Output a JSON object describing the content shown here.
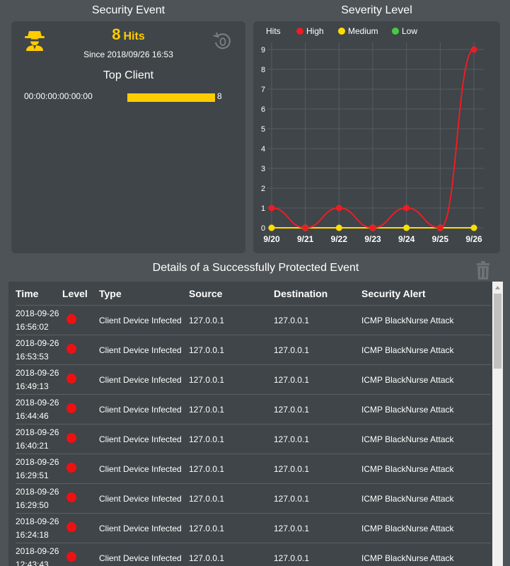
{
  "security_event": {
    "title": "Security Event",
    "hits_count": "8",
    "hits_unit": "Hits",
    "since": "Since 2018/09/26 16:53",
    "top_client_title": "Top Client",
    "top_client": {
      "mac": "00:00:00:00:00:00",
      "count": "8",
      "fraction": 1.0
    },
    "icons": {
      "spy": "spy-icon",
      "reset": "reset-counter-icon"
    }
  },
  "severity": {
    "title": "Severity Level"
  },
  "chart_data": {
    "type": "line",
    "title": "Severity Level",
    "legend_title": "Hits",
    "legend_position": "top-left",
    "categories": [
      "9/20",
      "9/21",
      "9/22",
      "9/23",
      "9/24",
      "9/25",
      "9/26"
    ],
    "ylim": [
      0,
      9
    ],
    "yticks": [
      "0",
      "1",
      "2",
      "3",
      "4",
      "5",
      "6",
      "7",
      "8",
      "9"
    ],
    "grid": true,
    "series": [
      {
        "name": "High",
        "color": "#ee1c25",
        "values": [
          1,
          0,
          1,
          0,
          1,
          0,
          9
        ]
      },
      {
        "name": "Medium",
        "color": "#ffdd00",
        "values": [
          0,
          0,
          0,
          0,
          0,
          0,
          0
        ]
      },
      {
        "name": "Low",
        "color": "#44cc44",
        "values": [
          0,
          0,
          0,
          0,
          0,
          0,
          0
        ]
      }
    ]
  },
  "details": {
    "title": "Details of a Successfully Protected Event",
    "columns": [
      "Time",
      "Level",
      "Type",
      "Source",
      "Destination",
      "Security Alert"
    ],
    "level_color": "#ee1111",
    "rows": [
      {
        "date": "2018-09-26",
        "time": "16:56:02",
        "level": "High",
        "type": "Client Device Infected",
        "source": "127.0.0.1",
        "destination": "127.0.0.1",
        "alert": "ICMP BlackNurse Attack"
      },
      {
        "date": "2018-09-26",
        "time": "16:53:53",
        "level": "High",
        "type": "Client Device Infected",
        "source": "127.0.0.1",
        "destination": "127.0.0.1",
        "alert": "ICMP BlackNurse Attack"
      },
      {
        "date": "2018-09-26",
        "time": "16:49:13",
        "level": "High",
        "type": "Client Device Infected",
        "source": "127.0.0.1",
        "destination": "127.0.0.1",
        "alert": "ICMP BlackNurse Attack"
      },
      {
        "date": "2018-09-26",
        "time": "16:44:46",
        "level": "High",
        "type": "Client Device Infected",
        "source": "127.0.0.1",
        "destination": "127.0.0.1",
        "alert": "ICMP BlackNurse Attack"
      },
      {
        "date": "2018-09-26",
        "time": "16:40:21",
        "level": "High",
        "type": "Client Device Infected",
        "source": "127.0.0.1",
        "destination": "127.0.0.1",
        "alert": "ICMP BlackNurse Attack"
      },
      {
        "date": "2018-09-26",
        "time": "16:29:51",
        "level": "High",
        "type": "Client Device Infected",
        "source": "127.0.0.1",
        "destination": "127.0.0.1",
        "alert": "ICMP BlackNurse Attack"
      },
      {
        "date": "2018-09-26",
        "time": "16:29:50",
        "level": "High",
        "type": "Client Device Infected",
        "source": "127.0.0.1",
        "destination": "127.0.0.1",
        "alert": "ICMP BlackNurse Attack"
      },
      {
        "date": "2018-09-26",
        "time": "16:24:18",
        "level": "High",
        "type": "Client Device Infected",
        "source": "127.0.0.1",
        "destination": "127.0.0.1",
        "alert": "ICMP BlackNurse Attack"
      },
      {
        "date": "2018-09-26",
        "time": "12:43:43",
        "level": "High",
        "type": "Client Device Infected",
        "source": "127.0.0.1",
        "destination": "127.0.0.1",
        "alert": "ICMP BlackNurse Attack"
      }
    ],
    "icons": {
      "delete": "trash-icon"
    }
  }
}
